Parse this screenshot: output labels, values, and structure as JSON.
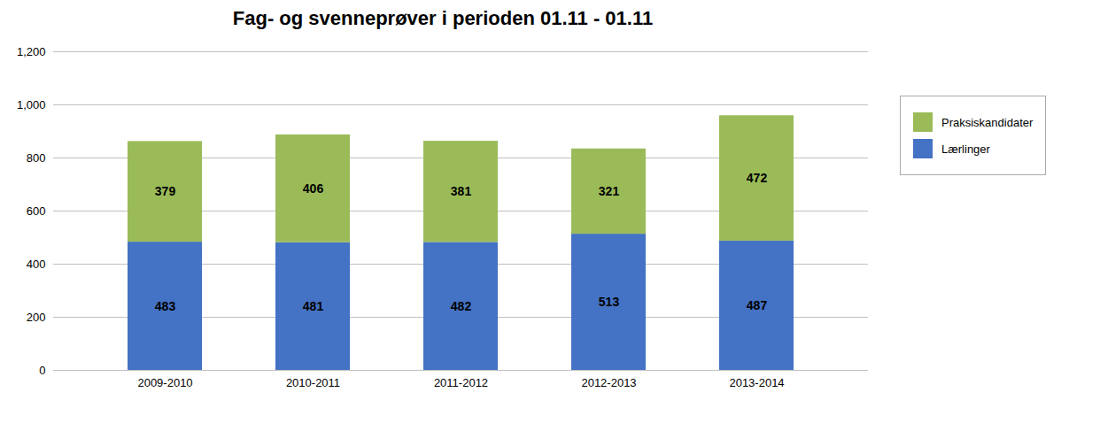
{
  "chart_data": {
    "type": "bar",
    "stacked": true,
    "title": "Fag- og svenneprøver i perioden 01.11 - 01.11",
    "categories": [
      "2009-2010",
      "2010-2011",
      "2011-2012",
      "2012-2013",
      "2013-2014"
    ],
    "series": [
      {
        "name": "Lærlinger",
        "color": "#4472C4",
        "values": [
          483,
          481,
          482,
          513,
          487
        ]
      },
      {
        "name": "Praksiskandidater",
        "color": "#9BBB59",
        "values": [
          379,
          406,
          381,
          321,
          472
        ]
      }
    ],
    "ylim": [
      0,
      1200
    ],
    "yticks": [
      0,
      200,
      400,
      600,
      800,
      1000,
      1200
    ],
    "grid": true,
    "legend": "right",
    "data_labels": true
  }
}
